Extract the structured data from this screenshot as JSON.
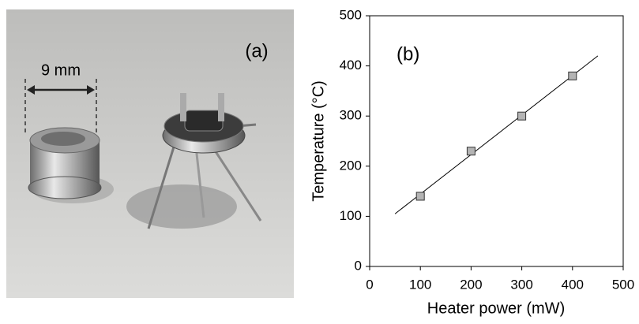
{
  "photo": {
    "panel_label": "(a)",
    "scale_label": "9 mm"
  },
  "chart_data": {
    "type": "scatter",
    "annotations": [
      "(b)"
    ],
    "xlabel": "Heater power (mW)",
    "ylabel": "Temperature (°C)",
    "x": [
      100,
      200,
      300,
      400
    ],
    "values": [
      140,
      230,
      300,
      380
    ],
    "color": "#b4b4b4",
    "trendline": {
      "x": [
        50,
        450
      ],
      "values": [
        105,
        420
      ],
      "color": "#000000"
    },
    "xlim": [
      0,
      500
    ],
    "xticks": [
      0,
      100,
      200,
      300,
      400,
      500
    ],
    "ylim": [
      0,
      500
    ],
    "yticks": [
      0,
      100,
      200,
      300,
      400,
      500
    ],
    "grid": false
  }
}
